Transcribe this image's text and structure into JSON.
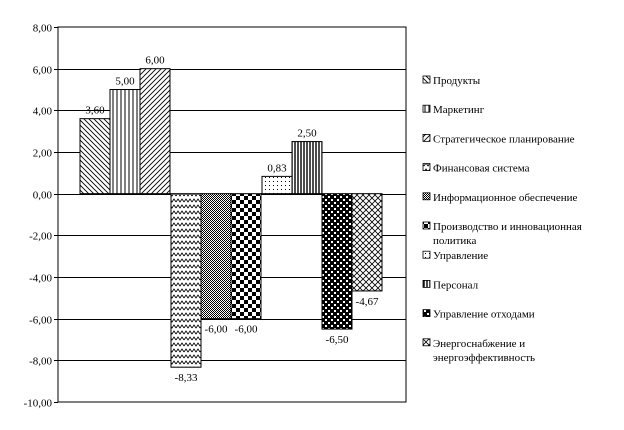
{
  "chart_data": {
    "type": "bar",
    "ylim": [
      -10,
      8
    ],
    "yticks": [
      "8,00",
      "6,00",
      "4,00",
      "2,00",
      "0,00",
      "-2,00",
      "-4,00",
      "-6,00",
      "-8,00",
      "-10,00"
    ],
    "ytick_values": [
      8,
      6,
      4,
      2,
      0,
      -2,
      -4,
      -6,
      -8,
      -10
    ],
    "grid": true,
    "legend_position": "right",
    "groups": 4,
    "series": [
      {
        "name": "Продукты",
        "group": 0,
        "value": 3.6,
        "label": "3,60",
        "pattern": "diag-back"
      },
      {
        "name": "Маркетинг",
        "group": 0,
        "value": 5.0,
        "label": "5,00",
        "pattern": "vert"
      },
      {
        "name": "Стратегическое планирование",
        "group": 0,
        "value": 6.0,
        "label": "6,00",
        "pattern": "diag-fwd"
      },
      {
        "name": "Финансовая система",
        "group": 1,
        "value": -8.33,
        "label": "-8,33",
        "pattern": "zigzag"
      },
      {
        "name": "Информационное обеспечение",
        "group": 1,
        "value": -6.0,
        "label": "-6,00",
        "pattern": "dense-check"
      },
      {
        "name": "Производство и инновационная политика",
        "group": 1,
        "value": -6.0,
        "label": "-6,00",
        "pattern": "big-check"
      },
      {
        "name": "Управление",
        "group": 2,
        "value": 0.83,
        "label": "0,83",
        "pattern": "dots"
      },
      {
        "name": "Персонал",
        "group": 2,
        "value": 2.5,
        "label": "2,50",
        "pattern": "vert-dense"
      },
      {
        "name": "Управление отходами",
        "group": 3,
        "value": -6.5,
        "label": "-6,50",
        "pattern": "grid-check"
      },
      {
        "name": "Энергоснабжение и энергоэффективность",
        "group": 3,
        "value": -4.67,
        "label": "-4,67",
        "pattern": "crosshatch"
      }
    ]
  },
  "legend_lines": [
    [
      "Продукты"
    ],
    [
      "Маркетинг"
    ],
    [
      "Стратегическое планирование"
    ],
    [
      "Финансовая система"
    ],
    [
      "Информационное обеспечение"
    ],
    [
      "Производство и инновационная",
      "политика"
    ],
    [
      "Управление"
    ],
    [
      "Персонал"
    ],
    [
      "Управление отходами"
    ],
    [
      "Энергоснабжение и",
      "энергоэффективность"
    ]
  ]
}
